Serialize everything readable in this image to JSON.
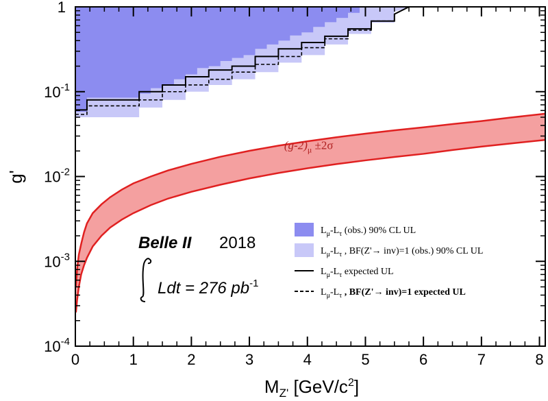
{
  "chart_data": {
    "type": "area",
    "xlabel": "M",
    "xlabel_sub": "Z'",
    "xlabel_unit": "[GeV/c",
    "xlabel_unit_sup": "2",
    "xlabel_unit_end": "]",
    "ylabel": "g'",
    "x_scale": "linear",
    "y_scale": "log",
    "xlim": [
      0,
      8.1
    ],
    "ylim": [
      0.0001,
      1
    ],
    "x_ticks": [
      0,
      1,
      2,
      3,
      4,
      5,
      6,
      7,
      8
    ],
    "x_tick_labels": [
      "0",
      "1",
      "2",
      "3",
      "4",
      "5",
      "6",
      "7",
      "8"
    ],
    "y_ticks": [
      {
        "value": 1,
        "base": "1",
        "exp": ""
      },
      {
        "value": 0.1,
        "base": "10",
        "exp": "-1"
      },
      {
        "value": 0.01,
        "base": "10",
        "exp": "-2"
      },
      {
        "value": 0.001,
        "base": "10",
        "exp": "-3"
      },
      {
        "value": 0.0001,
        "base": "10",
        "exp": "-4"
      }
    ],
    "experiment": {
      "name": "Belle II",
      "year": "2018",
      "lumi_lhs": "Ldt = 276 pb",
      "lumi_exp": "-1"
    },
    "band_label": {
      "main": "(g-2)",
      "sub": "μ",
      "suffix": " ±2σ",
      "x": 3.6,
      "y": 0.021
    },
    "legend": [
      {
        "type": "fill",
        "color": "#8c8cf0",
        "pre": "L",
        "sub1": "μ",
        "mid": "-L",
        "sub2": "τ",
        "post": " (obs.) 90% CL UL"
      },
      {
        "type": "fill",
        "color": "#c8c8f8",
        "pre": "L",
        "sub1": "μ",
        "mid": "-L",
        "sub2": "τ",
        "post": " , BF(Z'→ inv)=1 (obs.) 90% CL UL"
      },
      {
        "type": "solid",
        "color": "#000000",
        "pre": "L",
        "sub1": "μ",
        "mid": "-L",
        "sub2": "τ",
        "post": " expected UL"
      },
      {
        "type": "dashed",
        "color": "#000000",
        "pre": "L",
        "sub1": "μ",
        "mid": "-L",
        "sub2": "τ",
        "post": " , BF(Z'→ inv)=1 expected UL"
      }
    ],
    "series": [
      {
        "name": "Lμ-Lτ (obs.) 90% CL UL",
        "kind": "exclusion_step",
        "color": "#8c8cf0",
        "x": [
          0,
          0.2,
          0.2,
          1.1,
          1.1,
          1.3,
          1.3,
          1.5,
          1.5,
          1.7,
          1.7,
          1.9,
          1.9,
          2.1,
          2.1,
          2.3,
          2.3,
          2.5,
          2.5,
          2.7,
          2.7,
          2.9,
          2.9,
          3.1,
          3.1,
          3.3,
          3.3,
          3.5,
          3.5,
          3.7,
          3.7,
          3.9,
          3.9,
          4.1,
          4.1,
          4.3,
          4.3,
          4.5,
          4.5,
          4.7,
          4.7,
          4.9,
          4.9,
          5.1
        ],
        "y": [
          0.058,
          0.058,
          0.085,
          0.085,
          0.095,
          0.095,
          0.11,
          0.11,
          0.12,
          0.12,
          0.14,
          0.14,
          0.16,
          0.16,
          0.19,
          0.19,
          0.2,
          0.2,
          0.23,
          0.23,
          0.25,
          0.25,
          0.27,
          0.27,
          0.32,
          0.32,
          0.36,
          0.36,
          0.4,
          0.4,
          0.46,
          0.46,
          0.5,
          0.5,
          0.58,
          0.58,
          0.66,
          0.66,
          0.74,
          0.74,
          0.85,
          0.85,
          1.0,
          1.0
        ]
      },
      {
        "name": "Lμ-Lτ , BF(Z'→ inv)=1 (obs.) 90% CL UL",
        "kind": "exclusion_step",
        "color": "#c8c8f8",
        "x": [
          0,
          1.1,
          1.1,
          1.5,
          1.5,
          1.9,
          1.9,
          2.3,
          2.3,
          2.7,
          2.7,
          3.1,
          3.1,
          3.5,
          3.5,
          3.9,
          3.9,
          4.3,
          4.3,
          4.7,
          4.7,
          5.1,
          5.1,
          5.5,
          5.5,
          5.8
        ],
        "y": [
          0.05,
          0.05,
          0.065,
          0.065,
          0.08,
          0.08,
          0.1,
          0.1,
          0.12,
          0.12,
          0.14,
          0.14,
          0.17,
          0.17,
          0.22,
          0.22,
          0.27,
          0.27,
          0.36,
          0.36,
          0.48,
          0.48,
          0.65,
          0.65,
          0.88,
          1.0
        ]
      },
      {
        "name": "Lμ-Lτ expected UL",
        "kind": "line_solid",
        "color": "#000000",
        "x": [
          0,
          0.2,
          0.2,
          1.1,
          1.1,
          1.5,
          1.5,
          1.9,
          1.9,
          2.3,
          2.3,
          2.7,
          2.7,
          3.1,
          3.1,
          3.5,
          3.5,
          3.9,
          3.9,
          4.3,
          4.3,
          4.7,
          4.7,
          5.1,
          5.1,
          5.5,
          5.5,
          5.75
        ],
        "y": [
          0.061,
          0.061,
          0.08,
          0.08,
          0.1,
          0.1,
          0.12,
          0.12,
          0.15,
          0.15,
          0.18,
          0.18,
          0.2,
          0.2,
          0.26,
          0.26,
          0.32,
          0.32,
          0.38,
          0.38,
          0.45,
          0.45,
          0.55,
          0.55,
          0.68,
          0.68,
          0.82,
          1.0
        ]
      },
      {
        "name": "Lμ-Lτ , BF(Z'→ inv)=1 expected UL",
        "kind": "line_dashed",
        "color": "#000000",
        "x": [
          0,
          0.2,
          0.2,
          1.1,
          1.1,
          1.5,
          1.5,
          1.9,
          1.9,
          2.3,
          2.3,
          2.7,
          2.7,
          3.1,
          3.1,
          3.5,
          3.5,
          3.9,
          3.9,
          4.3,
          4.3,
          4.7,
          4.7,
          5.1,
          5.1,
          5.5,
          5.5,
          5.75
        ],
        "y": [
          0.054,
          0.054,
          0.068,
          0.068,
          0.08,
          0.08,
          0.1,
          0.1,
          0.12,
          0.12,
          0.14,
          0.14,
          0.17,
          0.17,
          0.21,
          0.21,
          0.26,
          0.26,
          0.33,
          0.33,
          0.42,
          0.42,
          0.53,
          0.53,
          0.68,
          0.68,
          0.82,
          1.0
        ]
      },
      {
        "name": "(g-2)μ ±2σ",
        "kind": "band",
        "color": "#f4a0a0",
        "edge_color": "#e02020",
        "x": [
          0.01,
          0.03,
          0.06,
          0.1,
          0.15,
          0.2,
          0.3,
          0.45,
          0.6,
          0.8,
          1.0,
          1.3,
          1.6,
          2.0,
          2.5,
          3.0,
          3.5,
          4.0,
          4.5,
          5.0,
          5.5,
          6.0,
          6.5,
          7.0,
          7.5,
          8.1
        ],
        "upper": [
          0.0005,
          0.0008,
          0.0012,
          0.0016,
          0.0022,
          0.0028,
          0.0037,
          0.0047,
          0.0057,
          0.007,
          0.0083,
          0.01,
          0.0118,
          0.0141,
          0.0171,
          0.0201,
          0.0231,
          0.026,
          0.029,
          0.032,
          0.035,
          0.038,
          0.0415,
          0.045,
          0.0495,
          0.055
        ],
        "lower": [
          0.00025,
          0.00035,
          0.0005,
          0.0007,
          0.0009,
          0.0011,
          0.0015,
          0.002,
          0.0025,
          0.0031,
          0.0037,
          0.0046,
          0.0055,
          0.0066,
          0.008,
          0.0095,
          0.011,
          0.0125,
          0.014,
          0.0155,
          0.017,
          0.0185,
          0.0205,
          0.0225,
          0.0245,
          0.027
        ]
      }
    ]
  }
}
